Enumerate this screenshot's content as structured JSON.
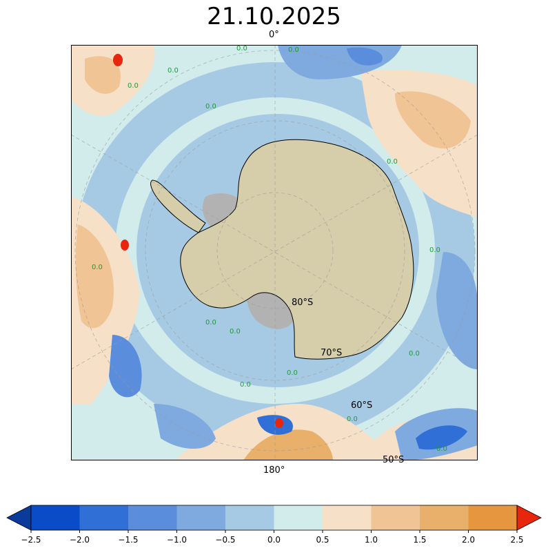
{
  "title": "21.10.2025",
  "labels": {
    "top_meridian": "0°",
    "bottom_meridian": "180°",
    "lat80": "80°S",
    "lat70": "70°S",
    "lat60": "60°S",
    "lat50": "50°S"
  },
  "contour_label": "0.0",
  "colorbar": {
    "ticks": [
      "−2.5",
      "−2.0",
      "−1.5",
      "−1.0",
      "−0.5",
      "0.0",
      "0.5",
      "1.0",
      "1.5",
      "2.0",
      "2.5"
    ],
    "colors": [
      "#0a3a9a",
      "#0a4bc8",
      "#2f6fd6",
      "#5a8edc",
      "#7eaadf",
      "#a6cae4",
      "#d2ecec",
      "#f6e0c8",
      "#f0c494",
      "#e9b06c",
      "#e5963f",
      "#e8250d"
    ]
  },
  "colors": {
    "land": "#d6cdaa",
    "ice_shelf": "#b2b2b2",
    "ocean_near_zero": "#a6cae4",
    "contour_label": "#1f9a3a"
  }
}
